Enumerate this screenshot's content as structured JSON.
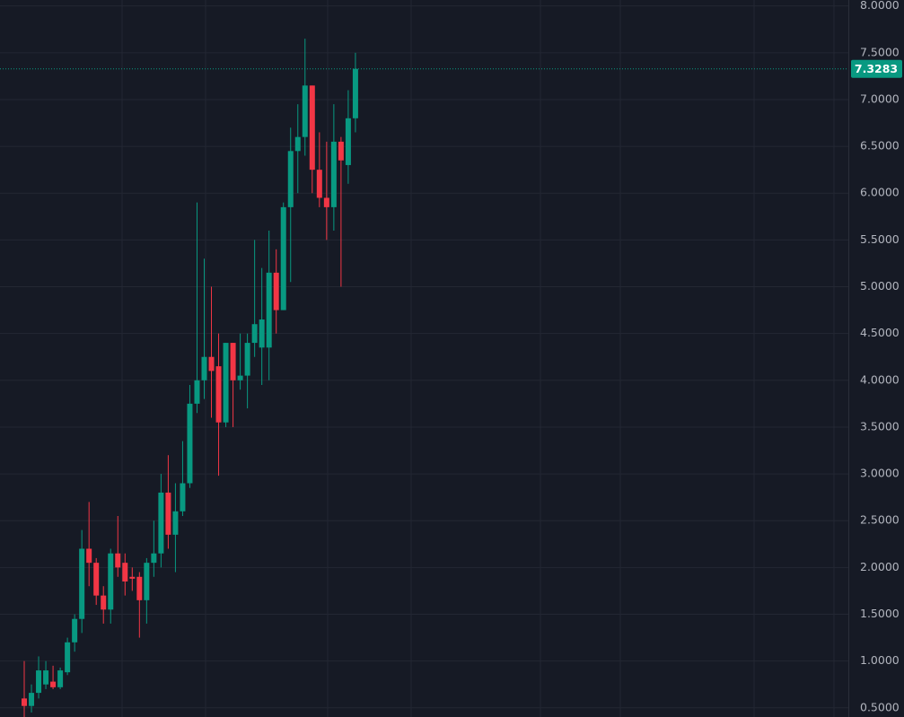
{
  "chart_data": {
    "type": "candlestick",
    "up_color": "#089981",
    "down_color": "#f23645",
    "grid": true,
    "ylim": [
      0.402,
      8.064
    ],
    "yticks": [
      {
        "value": 0.5,
        "label": "0.5000"
      },
      {
        "value": 1,
        "label": "1.0000"
      },
      {
        "value": 1.5,
        "label": "1.5000"
      },
      {
        "value": 2,
        "label": "2.0000"
      },
      {
        "value": 2.5,
        "label": "2.5000"
      },
      {
        "value": 3,
        "label": "3.0000"
      },
      {
        "value": 3.5,
        "label": "3.5000"
      },
      {
        "value": 4,
        "label": "4.0000"
      },
      {
        "value": 4.5,
        "label": "4.5000"
      },
      {
        "value": 5,
        "label": "5.0000"
      },
      {
        "value": 5.5,
        "label": "5.5000"
      },
      {
        "value": 6,
        "label": "6.0000"
      },
      {
        "value": 6.5,
        "label": "6.5000"
      },
      {
        "value": 7,
        "label": "7.0000"
      },
      {
        "value": 7.5,
        "label": "7.5000"
      },
      {
        "value": 8,
        "label": "8.0000"
      }
    ],
    "last_price": 7.3283,
    "open": [
      0.6,
      0.52,
      0.66,
      0.75,
      0.78,
      0.72,
      0.88,
      1.2,
      1.45,
      2.2,
      2.05,
      1.7,
      1.55,
      2.15,
      2.05,
      1.9,
      1.9,
      1.65,
      2.05,
      2.15,
      2.8,
      2.35,
      2.6,
      2.9,
      3.75,
      4.0,
      4.25,
      4.15,
      3.55,
      4.4,
      4.0,
      4.05,
      4.4,
      4.35,
      4.35,
      5.15,
      4.75,
      5.85,
      6.45,
      6.6,
      7.15,
      6.25,
      5.95,
      5.85,
      6.55,
      6.3,
      6.8
    ],
    "high": [
      1.0,
      0.75,
      1.05,
      1.0,
      0.95,
      0.93,
      1.25,
      1.5,
      2.4,
      2.7,
      2.1,
      1.8,
      2.2,
      2.55,
      2.15,
      2.0,
      1.95,
      2.1,
      2.5,
      3.0,
      3.2,
      2.9,
      3.35,
      3.95,
      5.9,
      5.3,
      5.0,
      4.5,
      4.4,
      4.4,
      4.5,
      4.5,
      5.5,
      5.2,
      5.6,
      5.4,
      5.9,
      6.7,
      6.95,
      7.65,
      7.15,
      6.65,
      6.55,
      6.95,
      6.6,
      7.1,
      7.5
    ],
    "low": [
      0.4,
      0.45,
      0.6,
      0.7,
      0.7,
      0.7,
      0.85,
      1.1,
      1.3,
      1.8,
      1.6,
      1.4,
      1.4,
      1.9,
      1.7,
      1.75,
      1.25,
      1.4,
      1.9,
      2.0,
      2.2,
      1.95,
      2.55,
      2.85,
      3.65,
      3.8,
      3.6,
      2.98,
      3.5,
      3.5,
      3.9,
      3.7,
      4.25,
      3.95,
      4.0,
      4.5,
      4.75,
      5.05,
      6.0,
      6.4,
      6.0,
      5.85,
      5.5,
      5.6,
      5.0,
      6.1,
      6.65
    ],
    "close": [
      0.52,
      0.66,
      0.9,
      0.9,
      0.72,
      0.9,
      1.2,
      1.45,
      2.2,
      2.05,
      1.7,
      1.55,
      2.15,
      2.0,
      1.85,
      1.88,
      1.65,
      2.05,
      2.15,
      2.8,
      2.35,
      2.6,
      2.9,
      3.75,
      4.0,
      4.25,
      4.1,
      3.55,
      4.4,
      4.0,
      4.05,
      4.4,
      4.6,
      4.65,
      5.15,
      4.75,
      5.85,
      6.45,
      6.6,
      7.15,
      6.25,
      5.95,
      5.85,
      6.55,
      6.35,
      6.8,
      7.3283
    ]
  }
}
